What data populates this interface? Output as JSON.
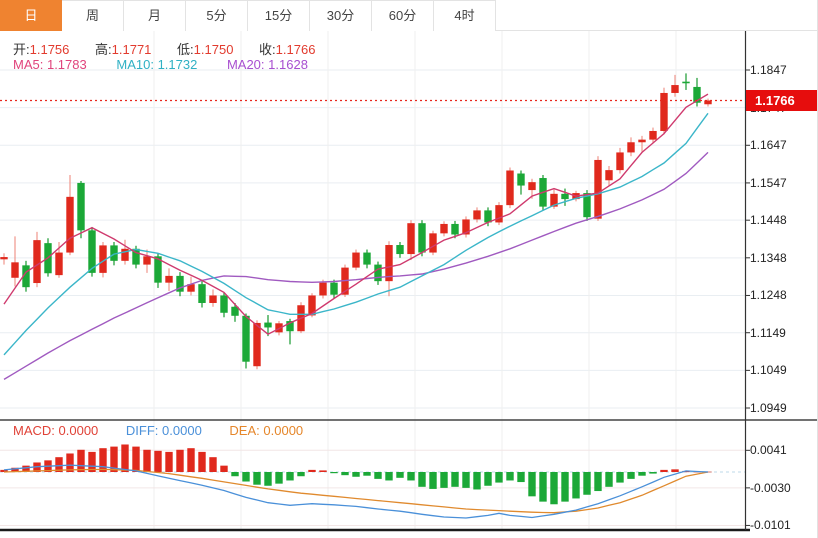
{
  "tabs": {
    "items": [
      {
        "label": "日",
        "active": true
      },
      {
        "label": "周",
        "active": false
      },
      {
        "label": "月",
        "active": false
      },
      {
        "label": "5分",
        "active": false
      },
      {
        "label": "15分",
        "active": false
      },
      {
        "label": "30分",
        "active": false
      },
      {
        "label": "60分",
        "active": false
      },
      {
        "label": "4时",
        "active": false
      }
    ]
  },
  "ohlc_bar": {
    "open_label": "开:",
    "open": "1.1756",
    "high_label": "高:",
    "high": "1.1771",
    "low_label": "低:",
    "low": "1.1750",
    "close_label": "收:",
    "close": "1.1766"
  },
  "ma_bar": {
    "ma5_label": "MA5:",
    "ma5": "1.1783",
    "ma10_label": "MA10:",
    "ma10": "1.1732",
    "ma20_label": "MA20:",
    "ma20": "1.1628"
  },
  "macd_bar": {
    "macd_label": "MACD:",
    "macd": "0.0000",
    "diff_label": "DIFF:",
    "diff": "0.0000",
    "dea_label": "DEA:",
    "dea": "0.0000"
  },
  "price_axis": {
    "labels": [
      "1.1847",
      "1.1747",
      "1.1647",
      "1.1547",
      "1.1448",
      "1.1348",
      "1.1248",
      "1.1149",
      "1.1049",
      "1.0949"
    ],
    "current_price_badge": "1.1766"
  },
  "macd_axis": {
    "labels": [
      "0.0041",
      "-0.0030",
      "-0.0101"
    ]
  },
  "colors": {
    "up": "#e0291d",
    "up_wick": "#f0958b",
    "down": "#1ba837",
    "down_wick": "#169a2f",
    "ma5": "#cf3a6e",
    "ma10": "#3bb6c9",
    "ma20": "#a05ac0",
    "diff": "#4a90d9",
    "dea": "#e08a2e",
    "dotted_price_line": "#e8281e",
    "badge_bg": "#e60d0d",
    "active_tab": "#ef8330",
    "grid_h": "#e9eef2",
    "grid_v": "#efefef",
    "macd_grid": "#f2e6e6",
    "axis_line": "#333333",
    "zero_dash": "#bcd9ea"
  },
  "chart_data": {
    "type": "candlestick+macd",
    "title": "",
    "main": {
      "axis_ticks": [
        1.1847,
        1.1747,
        1.1647,
        1.1547,
        1.1448,
        1.1348,
        1.1248,
        1.1149,
        1.1049,
        1.0949
      ],
      "ylim": [
        1.0949,
        1.1847
      ],
      "current_price": 1.1766,
      "last_ohlc": {
        "open": 1.1756,
        "high": 1.1771,
        "low": 1.175,
        "close": 1.1766
      },
      "ma_latest": {
        "ma5": 1.1783,
        "ma10": 1.1732,
        "ma20": 1.1628
      },
      "candles": [
        [
          1.1344,
          1.136,
          1.133,
          1.135
        ],
        [
          1.1295,
          1.1405,
          1.1272,
          1.1336
        ],
        [
          1.1328,
          1.134,
          1.1258,
          1.127
        ],
        [
          1.1281,
          1.1417,
          1.127,
          1.1395
        ],
        [
          1.1387,
          1.14,
          1.1298,
          1.1307
        ],
        [
          1.1302,
          1.139,
          1.1295,
          1.1362
        ],
        [
          1.1362,
          1.1568,
          1.1355,
          1.151
        ],
        [
          1.1547,
          1.1552,
          1.14,
          1.1421
        ],
        [
          1.1421,
          1.143,
          1.1298,
          1.1308
        ],
        [
          1.1308,
          1.139,
          1.1296,
          1.1381
        ],
        [
          1.1381,
          1.139,
          1.1328,
          1.134
        ],
        [
          1.134,
          1.1396,
          1.133,
          1.1372
        ],
        [
          1.1372,
          1.138,
          1.132,
          1.133
        ],
        [
          1.133,
          1.137,
          1.1308,
          1.1352
        ],
        [
          1.1352,
          1.136,
          1.1268,
          1.1282
        ],
        [
          1.1282,
          1.132,
          1.126,
          1.13
        ],
        [
          1.13,
          1.131,
          1.1246,
          1.1258
        ],
        [
          1.1258,
          1.1298,
          1.1248,
          1.1278
        ],
        [
          1.1278,
          1.1286,
          1.1216,
          1.1228
        ],
        [
          1.1228,
          1.1264,
          1.1218,
          1.1248
        ],
        [
          1.1248,
          1.1256,
          1.119,
          1.1202
        ],
        [
          1.1218,
          1.1228,
          1.1178,
          1.1194
        ],
        [
          1.1194,
          1.12,
          1.1054,
          1.1072
        ],
        [
          1.106,
          1.1182,
          1.1052,
          1.1175
        ],
        [
          1.1176,
          1.1196,
          1.114,
          1.1163
        ],
        [
          1.115,
          1.118,
          1.1142,
          1.1174
        ],
        [
          1.118,
          1.1186,
          1.1118,
          1.1153
        ],
        [
          1.1153,
          1.123,
          1.1148,
          1.1222
        ],
        [
          1.1195,
          1.1254,
          1.119,
          1.1248
        ],
        [
          1.1248,
          1.129,
          1.124,
          1.1282
        ],
        [
          1.1282,
          1.129,
          1.124,
          1.125
        ],
        [
          1.125,
          1.133,
          1.1244,
          1.1322
        ],
        [
          1.1322,
          1.137,
          1.1315,
          1.1362
        ],
        [
          1.1362,
          1.137,
          1.132,
          1.133
        ],
        [
          1.133,
          1.1338,
          1.1276,
          1.1286
        ],
        [
          1.1286,
          1.1392,
          1.1246,
          1.1382
        ],
        [
          1.1382,
          1.139,
          1.1348,
          1.1358
        ],
        [
          1.1358,
          1.1448,
          1.1342,
          1.144
        ],
        [
          1.144,
          1.1448,
          1.1352,
          1.1362
        ],
        [
          1.1362,
          1.142,
          1.1355,
          1.1413
        ],
        [
          1.1413,
          1.1445,
          1.1405,
          1.1438
        ],
        [
          1.1438,
          1.1446,
          1.14,
          1.141
        ],
        [
          1.141,
          1.1458,
          1.1402,
          1.145
        ],
        [
          1.145,
          1.1482,
          1.1442,
          1.1474
        ],
        [
          1.1474,
          1.1482,
          1.1432,
          1.1442
        ],
        [
          1.1442,
          1.1496,
          1.1435,
          1.1488
        ],
        [
          1.1488,
          1.1588,
          1.148,
          1.158
        ],
        [
          1.1572,
          1.158,
          1.1516,
          1.154
        ],
        [
          1.1528,
          1.1558,
          1.1505,
          1.1549
        ],
        [
          1.156,
          1.1568,
          1.1474,
          1.1484
        ],
        [
          1.1484,
          1.153,
          1.1478,
          1.1518
        ],
        [
          1.1518,
          1.1532,
          1.1486,
          1.1504
        ],
        [
          1.1504,
          1.1526,
          1.1498,
          1.152
        ],
        [
          1.152,
          1.1528,
          1.1446,
          1.1456
        ],
        [
          1.1452,
          1.1618,
          1.1446,
          1.1608
        ],
        [
          1.1554,
          1.1592,
          1.154,
          1.1581
        ],
        [
          1.1581,
          1.164,
          1.1572,
          1.1628
        ],
        [
          1.1628,
          1.1668,
          1.1618,
          1.1655
        ],
        [
          1.1655,
          1.1672,
          1.163,
          1.1662
        ],
        [
          1.1662,
          1.1694,
          1.1652,
          1.1685
        ],
        [
          1.1685,
          1.18,
          1.1676,
          1.1786
        ],
        [
          1.1786,
          1.1834,
          1.1776,
          1.1807
        ],
        [
          1.1816,
          1.1838,
          1.1794,
          1.1812
        ],
        [
          1.1802,
          1.1826,
          1.175,
          1.176
        ],
        [
          1.1756,
          1.1771,
          1.175,
          1.1766
        ]
      ],
      "ma5_points": [
        [
          0,
          1.1225
        ],
        [
          2,
          1.131
        ],
        [
          4,
          1.1348
        ],
        [
          6,
          1.14
        ],
        [
          8,
          1.1428
        ],
        [
          10,
          1.1398
        ],
        [
          12,
          1.1362
        ],
        [
          14,
          1.1345
        ],
        [
          16,
          1.1315
        ],
        [
          18,
          1.1288
        ],
        [
          20,
          1.1256
        ],
        [
          22,
          1.1192
        ],
        [
          24,
          1.1145
        ],
        [
          26,
          1.1175
        ],
        [
          28,
          1.12
        ],
        [
          30,
          1.124
        ],
        [
          32,
          1.1278
        ],
        [
          34,
          1.1318
        ],
        [
          36,
          1.133
        ],
        [
          38,
          1.1362
        ],
        [
          40,
          1.1395
        ],
        [
          42,
          1.1415
        ],
        [
          44,
          1.1442
        ],
        [
          46,
          1.1465
        ],
        [
          48,
          1.1512
        ],
        [
          50,
          1.1532
        ],
        [
          52,
          1.1512
        ],
        [
          54,
          1.152
        ],
        [
          56,
          1.1558
        ],
        [
          58,
          1.1628
        ],
        [
          60,
          1.1678
        ],
        [
          62,
          1.1748
        ],
        [
          64,
          1.1783
        ]
      ],
      "ma10_points": [
        [
          0,
          1.109
        ],
        [
          2,
          1.1155
        ],
        [
          4,
          1.1215
        ],
        [
          6,
          1.127
        ],
        [
          8,
          1.132
        ],
        [
          10,
          1.1358
        ],
        [
          12,
          1.137
        ],
        [
          14,
          1.136
        ],
        [
          16,
          1.134
        ],
        [
          18,
          1.1312
        ],
        [
          20,
          1.128
        ],
        [
          22,
          1.1242
        ],
        [
          24,
          1.121
        ],
        [
          26,
          1.1198
        ],
        [
          28,
          1.1198
        ],
        [
          30,
          1.1212
        ],
        [
          32,
          1.123
        ],
        [
          34,
          1.1252
        ],
        [
          36,
          1.127
        ],
        [
          38,
          1.13
        ],
        [
          40,
          1.133
        ],
        [
          42,
          1.1368
        ],
        [
          44,
          1.1402
        ],
        [
          46,
          1.1432
        ],
        [
          48,
          1.146
        ],
        [
          50,
          1.1488
        ],
        [
          52,
          1.1506
        ],
        [
          54,
          1.1518
        ],
        [
          56,
          1.1536
        ],
        [
          58,
          1.1564
        ],
        [
          60,
          1.16
        ],
        [
          62,
          1.1652
        ],
        [
          64,
          1.1732
        ]
      ],
      "ma20_points": [
        [
          0,
          1.1025
        ],
        [
          2,
          1.106
        ],
        [
          4,
          1.1095
        ],
        [
          6,
          1.1128
        ],
        [
          8,
          1.1158
        ],
        [
          10,
          1.1188
        ],
        [
          12,
          1.1215
        ],
        [
          14,
          1.1242
        ],
        [
          16,
          1.1268
        ],
        [
          18,
          1.1288
        ],
        [
          20,
          1.13
        ],
        [
          22,
          1.1298
        ],
        [
          24,
          1.129
        ],
        [
          26,
          1.1285
        ],
        [
          28,
          1.1283
        ],
        [
          30,
          1.1285
        ],
        [
          32,
          1.129
        ],
        [
          34,
          1.1296
        ],
        [
          36,
          1.13
        ],
        [
          38,
          1.1305
        ],
        [
          40,
          1.1318
        ],
        [
          42,
          1.1334
        ],
        [
          44,
          1.1352
        ],
        [
          46,
          1.1372
        ],
        [
          48,
          1.1395
        ],
        [
          50,
          1.1418
        ],
        [
          52,
          1.144
        ],
        [
          54,
          1.1458
        ],
        [
          56,
          1.1478
        ],
        [
          58,
          1.1502
        ],
        [
          60,
          1.153
        ],
        [
          62,
          1.1572
        ],
        [
          64,
          1.1628
        ]
      ]
    },
    "macd": {
      "axis_ticks": [
        0.0041,
        -0.003,
        -0.0101
      ],
      "latest": {
        "macd": 0.0,
        "diff": 0.0,
        "dea": 0.0
      },
      "histogram": [
        0.0004,
        0.0008,
        0.0012,
        0.0018,
        0.0022,
        0.0028,
        0.0035,
        0.0042,
        0.0038,
        0.0045,
        0.0048,
        0.0052,
        0.0048,
        0.0042,
        0.004,
        0.0038,
        0.0042,
        0.0045,
        0.0038,
        0.0028,
        0.0012,
        -0.0008,
        -0.0018,
        -0.0024,
        -0.0026,
        -0.0022,
        -0.0016,
        -0.0008,
        0.0004,
        0.0003,
        -0.0002,
        -0.0006,
        -0.0009,
        -0.0007,
        -0.0013,
        -0.0016,
        -0.0011,
        -0.0016,
        -0.0028,
        -0.0032,
        -0.003,
        -0.0028,
        -0.003,
        -0.0033,
        -0.0026,
        -0.002,
        -0.0016,
        -0.0019,
        -0.0046,
        -0.0056,
        -0.0061,
        -0.0056,
        -0.005,
        -0.0043,
        -0.0036,
        -0.0028,
        -0.002,
        -0.0013,
        -0.0007,
        -0.0003,
        0.0004,
        0.0005,
        0.0002,
        0.0,
        0.0
      ],
      "diff_points": [
        [
          0,
          0.0004
        ],
        [
          3,
          0.001
        ],
        [
          6,
          0.0013
        ],
        [
          9,
          0.001
        ],
        [
          12,
          0.0002
        ],
        [
          15,
          -0.0012
        ],
        [
          18,
          -0.0025
        ],
        [
          20,
          -0.0035
        ],
        [
          22,
          -0.0048
        ],
        [
          24,
          -0.0058
        ],
        [
          26,
          -0.0063
        ],
        [
          28,
          -0.006
        ],
        [
          30,
          -0.0062
        ],
        [
          32,
          -0.0065
        ],
        [
          34,
          -0.007
        ],
        [
          36,
          -0.0074
        ],
        [
          38,
          -0.008
        ],
        [
          40,
          -0.0085
        ],
        [
          42,
          -0.0087
        ],
        [
          44,
          -0.0082
        ],
        [
          45,
          -0.0078
        ],
        [
          46,
          -0.0082
        ],
        [
          48,
          -0.0086
        ],
        [
          50,
          -0.008
        ],
        [
          52,
          -0.0072
        ],
        [
          54,
          -0.006
        ],
        [
          56,
          -0.0045
        ],
        [
          58,
          -0.0028
        ],
        [
          60,
          -0.001
        ],
        [
          62,
          0.0002
        ],
        [
          64,
          0.0
        ]
      ],
      "dea_points": [
        [
          0,
          0.0
        ],
        [
          3,
          0.0002
        ],
        [
          6,
          0.0004
        ],
        [
          9,
          0.0005
        ],
        [
          12,
          0.0003
        ],
        [
          15,
          -0.0003
        ],
        [
          18,
          -0.0012
        ],
        [
          21,
          -0.0022
        ],
        [
          24,
          -0.0032
        ],
        [
          27,
          -0.004
        ],
        [
          30,
          -0.0046
        ],
        [
          33,
          -0.0052
        ],
        [
          36,
          -0.0058
        ],
        [
          39,
          -0.0064
        ],
        [
          42,
          -0.007
        ],
        [
          45,
          -0.0073
        ],
        [
          48,
          -0.0076
        ],
        [
          50,
          -0.0077
        ],
        [
          52,
          -0.0074
        ],
        [
          54,
          -0.0068
        ],
        [
          56,
          -0.0058
        ],
        [
          58,
          -0.0044
        ],
        [
          60,
          -0.0026
        ],
        [
          62,
          -0.0008
        ],
        [
          64,
          0.0
        ]
      ]
    }
  }
}
